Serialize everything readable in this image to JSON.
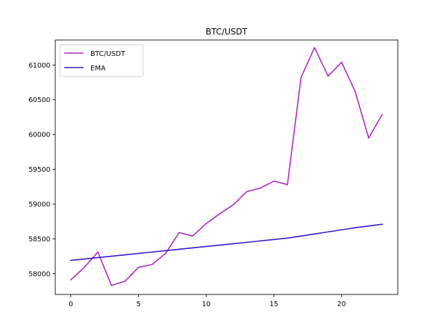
{
  "chart_data": {
    "type": "line",
    "title": "BTC/USDT",
    "xlabel": "",
    "ylabel": "",
    "xlim": [
      -1.15,
      24.15
    ],
    "ylim": [
      57700,
      61360
    ],
    "xticks": [
      0,
      5,
      10,
      15,
      20
    ],
    "xtick_labels": [
      "0",
      "5",
      "10",
      "15",
      "20"
    ],
    "yticks": [
      58000,
      58500,
      59000,
      59500,
      60000,
      60500,
      61000
    ],
    "ytick_labels": [
      "58000",
      "58500",
      "59000",
      "59500",
      "60000",
      "60500",
      "61000"
    ],
    "grid": false,
    "legend_position": "top-left",
    "x": [
      0,
      1,
      2,
      3,
      4,
      5,
      6,
      7,
      8,
      9,
      10,
      11,
      12,
      13,
      14,
      15,
      16,
      17,
      18,
      19,
      20,
      21,
      22,
      23
    ],
    "series": [
      {
        "name": "BTC/USDT",
        "color": "#aa22bb",
        "values": [
          57910,
          58090,
          58310,
          57830,
          57890,
          58090,
          58130,
          58290,
          58590,
          58540,
          58720,
          58860,
          58990,
          59180,
          59230,
          59330,
          59280,
          60820,
          61250,
          60840,
          61040,
          60620,
          59950,
          60290
        ]
      },
      {
        "name": "EMA",
        "color": "#3311cc",
        "values": [
          58190,
          58210,
          58230,
          58250,
          58270,
          58290,
          58310,
          58330,
          58350,
          58370,
          58390,
          58410,
          58430,
          58450,
          58470,
          58490,
          58510,
          58540,
          58570,
          58600,
          58630,
          58660,
          58685,
          58710
        ]
      }
    ]
  }
}
